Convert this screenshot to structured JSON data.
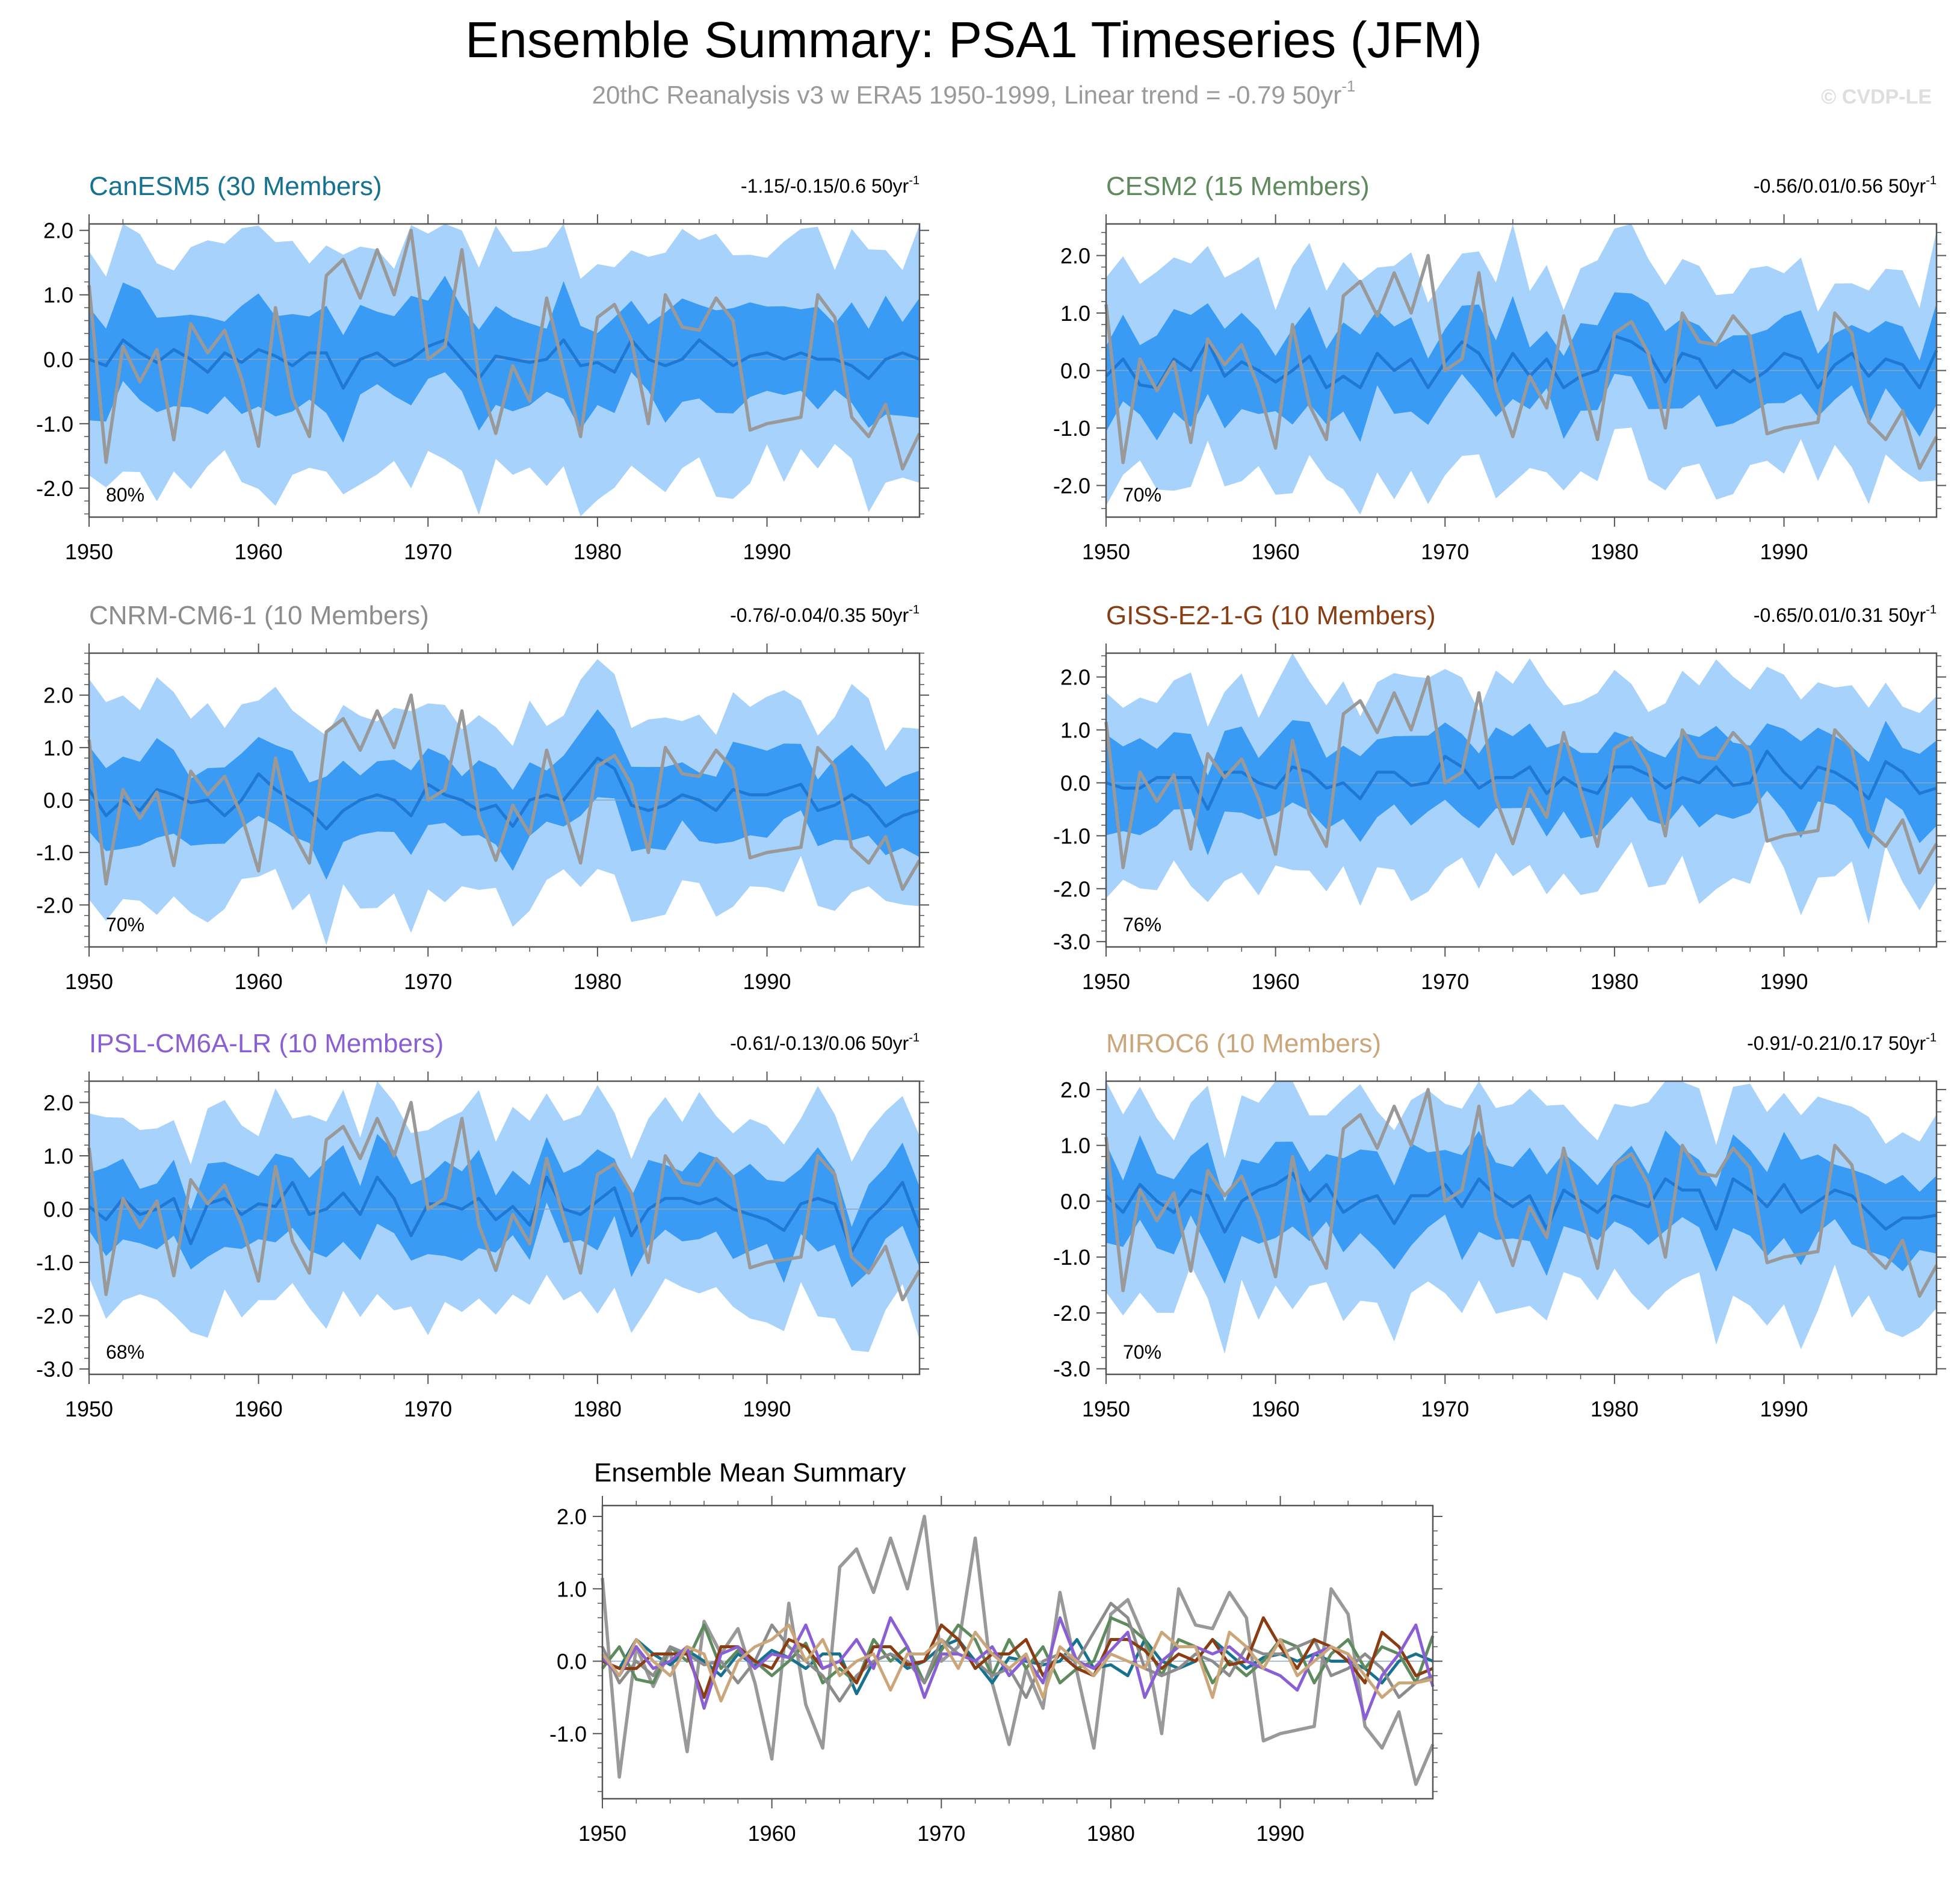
{
  "title": "Ensemble Summary: PSA1 Timeseries (JFM)",
  "subtitle_main": "20thC Reanalysis v3 w ERA5 1950-1999, Linear trend = -0.79 50yr",
  "subtitle_sup": "-1",
  "copyright": "© CVDP-LE",
  "unit_text": " 50yr",
  "unit_sup": "-1",
  "colors": {
    "band_outer": "#a6d2fb",
    "band_inner": "#3a9bf5",
    "ens_mean": "#1f78d4",
    "observed": "#999999",
    "frame": "#555555",
    "zero_line": "#8aa6c2"
  },
  "chart_data": {
    "years_start": 1950,
    "years_end": 1999,
    "xlim": [
      1950,
      1999
    ],
    "xticks": [
      1950,
      1960,
      1970,
      1980,
      1990
    ],
    "observed": {
      "name": "20thC Reanalysis v3 w ERA5",
      "trend": -0.79,
      "values": [
        1.15,
        -1.6,
        0.2,
        -0.35,
        0.15,
        -1.25,
        0.55,
        0.1,
        0.45,
        -0.3,
        -1.35,
        0.8,
        -0.6,
        -1.2,
        1.3,
        1.55,
        0.95,
        1.7,
        1.0,
        2.0,
        0.0,
        0.2,
        1.7,
        -0.3,
        -1.15,
        -0.1,
        -0.65,
        0.95,
        -0.15,
        -1.2,
        0.65,
        0.85,
        0.3,
        -1.0,
        1.0,
        0.5,
        0.45,
        0.95,
        0.6,
        -1.1,
        -1.0,
        -0.95,
        -0.9,
        1.0,
        0.65,
        -0.9,
        -1.2,
        -0.7,
        -1.7,
        -1.15
      ]
    },
    "panels": [
      {
        "name": "CanESM5",
        "members": 30,
        "label": "CanESM5 (30 Members)",
        "color": "#17728f",
        "trend_text": "-1.15/-0.15/0.6",
        "percent": "80%",
        "ylim": [
          -2.45,
          2.1
        ],
        "yticks": [
          -2.0,
          -1.0,
          0.0,
          1.0,
          2.0
        ],
        "yticklabels": [
          "-2.0",
          "-1.0",
          "0.0",
          "1.0",
          "2.0"
        ],
        "mean": [
          0.0,
          -0.1,
          0.3,
          0.1,
          -0.05,
          0.15,
          0.0,
          -0.2,
          0.1,
          -0.05,
          0.15,
          0.05,
          -0.1,
          0.1,
          0.1,
          -0.45,
          0.0,
          0.1,
          -0.1,
          0.0,
          0.2,
          0.3,
          0.0,
          -0.3,
          0.05,
          0.0,
          -0.05,
          0.0,
          0.3,
          -0.1,
          -0.05,
          -0.2,
          0.3,
          0.0,
          -0.1,
          0.0,
          0.3,
          0.1,
          -0.1,
          0.05,
          0.1,
          0.0,
          0.1,
          0.0,
          0.0,
          -0.1,
          -0.3,
          0.0,
          0.1,
          0.0
        ],
        "seed": 11
      },
      {
        "name": "CESM2",
        "members": 15,
        "label": "CESM2 (15 Members)",
        "color": "#5e8a5e",
        "trend_text": "-0.56/0.01/0.56",
        "percent": "70%",
        "ylim": [
          -2.55,
          2.55
        ],
        "yticks": [
          -2.0,
          -1.0,
          0.0,
          1.0,
          2.0
        ],
        "yticklabels": [
          "-2.0",
          "-1.0",
          "0.0",
          "1.0",
          "2.0"
        ],
        "mean": [
          -0.1,
          0.2,
          -0.25,
          -0.3,
          0.2,
          0.0,
          0.5,
          -0.1,
          0.15,
          0.0,
          -0.2,
          0.0,
          0.25,
          -0.3,
          -0.1,
          -0.3,
          0.3,
          0.0,
          0.2,
          -0.3,
          0.15,
          0.5,
          0.3,
          -0.2,
          0.3,
          -0.1,
          0.2,
          -0.3,
          -0.1,
          0.0,
          0.6,
          0.5,
          0.3,
          -0.2,
          0.3,
          0.2,
          -0.3,
          0.0,
          -0.2,
          0.0,
          0.3,
          0.2,
          -0.3,
          0.1,
          0.3,
          -0.1,
          0.2,
          0.1,
          -0.3,
          0.35
        ],
        "seed": 23
      },
      {
        "name": "CNRM-CM6-1",
        "members": 10,
        "label": "CNRM-CM6-1 (10 Members)",
        "color": "#8c8c8c",
        "trend_text": "-0.76/-0.04/0.35",
        "percent": "70%",
        "ylim": [
          -2.8,
          2.8
        ],
        "yticks": [
          -2.0,
          -1.0,
          0.0,
          1.0,
          2.0
        ],
        "yticklabels": [
          "-2.0",
          "-1.0",
          "0.0",
          "1.0",
          "2.0"
        ],
        "mean": [
          0.2,
          -0.3,
          0.0,
          -0.2,
          0.2,
          0.1,
          -0.05,
          0.0,
          -0.3,
          0.0,
          0.5,
          0.2,
          0.0,
          -0.2,
          -0.55,
          -0.2,
          0.0,
          0.1,
          0.0,
          -0.3,
          0.3,
          0.1,
          0.0,
          -0.2,
          -0.1,
          -0.5,
          0.0,
          0.1,
          0.0,
          0.4,
          0.8,
          0.6,
          -0.1,
          -0.2,
          -0.1,
          0.1,
          0.0,
          -0.2,
          0.2,
          0.1,
          0.1,
          0.2,
          0.3,
          -0.2,
          -0.1,
          0.1,
          -0.1,
          -0.5,
          -0.3,
          -0.2
        ],
        "seed": 37
      },
      {
        "name": "GISS-E2-1-G",
        "members": 10,
        "label": "GISS-E2-1-G (10 Members)",
        "color": "#8a3d12",
        "trend_text": "-0.65/0.01/0.31",
        "percent": "76%",
        "ylim": [
          -3.1,
          2.45
        ],
        "yticks": [
          -3.0,
          -2.0,
          -1.0,
          0.0,
          1.0,
          2.0
        ],
        "yticklabels": [
          "-3.0",
          "-2.0",
          "-1.0",
          "0.0",
          "1.0",
          "2.0"
        ],
        "mean": [
          0.0,
          -0.1,
          -0.1,
          0.1,
          0.1,
          0.1,
          -0.5,
          0.2,
          0.2,
          0.0,
          -0.1,
          0.3,
          0.2,
          -0.1,
          0.0,
          -0.3,
          0.2,
          0.2,
          -0.05,
          0.0,
          0.5,
          0.3,
          -0.1,
          0.1,
          0.1,
          0.3,
          -0.2,
          0.1,
          -0.1,
          -0.2,
          0.3,
          0.3,
          0.15,
          -0.1,
          0.1,
          0.0,
          0.3,
          -0.05,
          0.0,
          0.6,
          0.2,
          -0.1,
          0.3,
          0.2,
          0.0,
          -0.3,
          0.4,
          0.2,
          -0.2,
          -0.1
        ],
        "seed": 41
      },
      {
        "name": "IPSL-CM6A-LR",
        "members": 10,
        "label": "IPSL-CM6A-LR (10 Members)",
        "color": "#8a5fd6",
        "trend_text": "-0.61/-0.13/0.06",
        "percent": "68%",
        "ylim": [
          -3.1,
          2.4
        ],
        "yticks": [
          -3.0,
          -2.0,
          -1.0,
          0.0,
          1.0,
          2.0
        ],
        "yticklabels": [
          "-3.0",
          "-2.0",
          "-1.0",
          "0.0",
          "1.0",
          "2.0"
        ],
        "mean": [
          0.05,
          -0.2,
          0.2,
          -0.1,
          0.0,
          0.2,
          -0.65,
          0.1,
          0.2,
          -0.1,
          0.1,
          0.05,
          0.5,
          -0.1,
          0.0,
          0.3,
          -0.1,
          0.6,
          0.2,
          -0.5,
          0.1,
          0.1,
          0.0,
          0.2,
          -0.2,
          0.05,
          -0.3,
          0.6,
          0.0,
          -0.1,
          0.15,
          0.4,
          -0.5,
          0.0,
          0.2,
          0.2,
          0.1,
          0.2,
          0.0,
          -0.1,
          -0.2,
          -0.4,
          0.1,
          0.2,
          0.1,
          -0.8,
          -0.2,
          0.1,
          0.5,
          -0.35
        ],
        "seed": 53
      },
      {
        "name": "MIROC6",
        "members": 10,
        "label": "MIROC6 (10 Members)",
        "color": "#caa67a",
        "trend_text": "-0.91/-0.21/0.17",
        "percent": "70%",
        "ylim": [
          -3.1,
          2.15
        ],
        "yticks": [
          -3.0,
          -2.0,
          -1.0,
          0.0,
          1.0,
          2.0
        ],
        "yticklabels": [
          "-3.0",
          "-2.0",
          "-1.0",
          "0.0",
          "1.0",
          "2.0"
        ],
        "mean": [
          0.1,
          -0.2,
          0.3,
          0.0,
          -0.2,
          0.2,
          0.1,
          -0.55,
          0.0,
          0.2,
          0.3,
          0.5,
          0.0,
          0.3,
          -0.2,
          0.0,
          0.1,
          -0.4,
          0.1,
          0.1,
          0.3,
          -0.1,
          0.4,
          0.1,
          -0.1,
          0.1,
          -0.5,
          0.2,
          0.0,
          -0.2,
          0.1,
          0.0,
          -0.1,
          0.4,
          0.2,
          0.2,
          -0.5,
          0.4,
          0.2,
          -0.1,
          0.3,
          -0.2,
          0.0,
          0.2,
          0.1,
          -0.2,
          -0.5,
          -0.3,
          -0.3,
          -0.25
        ],
        "seed": 67
      }
    ],
    "summary": {
      "title": "Ensemble Mean Summary",
      "ylim": [
        -1.9,
        2.15
      ],
      "yticks": [
        -1.0,
        0.0,
        1.0,
        2.0
      ],
      "yticklabels": [
        "-1.0",
        "0.0",
        "1.0",
        "2.0"
      ]
    }
  }
}
